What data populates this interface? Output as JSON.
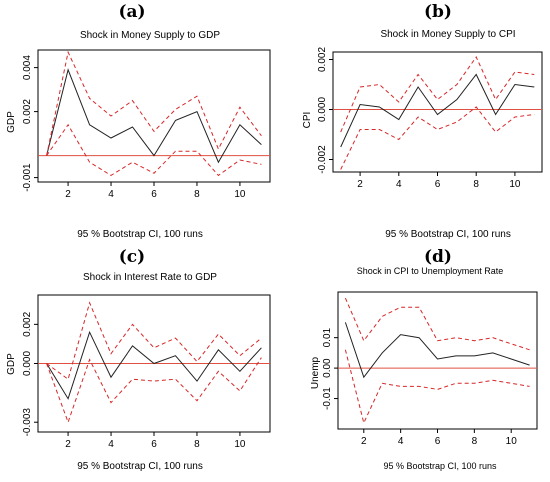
{
  "chart_data": [
    {
      "panel_label": "(a)",
      "type": "line",
      "title": "Shock in Money Supply to GDP",
      "xlabel": "",
      "ylabel": "GDP",
      "caption": "95 % Bootstrap CI,  100 runs",
      "x": [
        1,
        2,
        3,
        4,
        5,
        6,
        7,
        8,
        9,
        10,
        11
      ],
      "xticks": [
        2,
        4,
        6,
        8,
        10
      ],
      "xlim": [
        0.6,
        11.4
      ],
      "ylim": [
        -0.0012,
        0.0048
      ],
      "yticks": [
        -0.001,
        0.002,
        0.004
      ],
      "ytick_labels": [
        "-0.001",
        "0.002",
        "0.004"
      ],
      "zero_line": 0,
      "series": [
        {
          "role": "estimate",
          "color": "#222222",
          "dashed": false,
          "values": [
            0.0,
            0.0039,
            0.0014,
            0.0008,
            0.0013,
            0.0,
            0.0016,
            0.002,
            -0.0003,
            0.0014,
            0.0005
          ]
        },
        {
          "role": "upper",
          "color": "#d62728",
          "dashed": true,
          "values": [
            0.0,
            0.0047,
            0.0026,
            0.0018,
            0.0025,
            0.0011,
            0.0021,
            0.0027,
            0.0003,
            0.0022,
            0.0009
          ]
        },
        {
          "role": "lower",
          "color": "#d62728",
          "dashed": true,
          "values": [
            0.0,
            0.0014,
            -0.0003,
            -0.0009,
            -0.0003,
            -0.0008,
            0.0002,
            0.0002,
            -0.0009,
            -0.0002,
            -0.0004
          ]
        }
      ]
    },
    {
      "panel_label": "(b)",
      "type": "line",
      "title": "Shock in Money Supply to CPI",
      "xlabel": "",
      "ylabel": "CPI",
      "caption": "95 % Bootstrap CI,  100 runs",
      "x": [
        1,
        2,
        3,
        4,
        5,
        6,
        7,
        8,
        9,
        10,
        11
      ],
      "xticks": [
        2,
        4,
        6,
        8,
        10
      ],
      "xlim": [
        0.6,
        11.4
      ],
      "ylim": [
        -0.0025,
        0.0023
      ],
      "yticks": [
        -0.002,
        0.0,
        0.002
      ],
      "ytick_labels": [
        "-0.002",
        "0.000",
        "0.002"
      ],
      "zero_line": 0,
      "series": [
        {
          "role": "estimate",
          "color": "#222222",
          "dashed": false,
          "values": [
            -0.0015,
            0.0002,
            0.0001,
            -0.0004,
            0.0009,
            -0.0002,
            0.0004,
            0.0014,
            -0.0002,
            0.001,
            0.0009
          ]
        },
        {
          "role": "upper",
          "color": "#d62728",
          "dashed": true,
          "values": [
            -0.0009,
            0.0009,
            0.001,
            0.0003,
            0.0014,
            0.0004,
            0.001,
            0.0021,
            0.0004,
            0.0015,
            0.0014
          ]
        },
        {
          "role": "lower",
          "color": "#d62728",
          "dashed": true,
          "values": [
            -0.0024,
            -0.0008,
            -0.0008,
            -0.0012,
            -0.0003,
            -0.0008,
            -0.0005,
            0.0001,
            -0.0009,
            -0.0003,
            -0.0002
          ]
        }
      ]
    },
    {
      "panel_label": "(c)",
      "type": "line",
      "title": "Shock in Interest Rate to GDP",
      "xlabel": "",
      "ylabel": "GDP",
      "caption": "95 % Bootstrap CI,  100 runs",
      "x": [
        1,
        2,
        3,
        4,
        5,
        6,
        7,
        8,
        9,
        10,
        11
      ],
      "xticks": [
        2,
        4,
        6,
        8,
        10
      ],
      "xlim": [
        0.6,
        11.4
      ],
      "ylim": [
        -0.0035,
        0.0035
      ],
      "yticks": [
        -0.003,
        0.0,
        0.002
      ],
      "ytick_labels": [
        "-0.003",
        "0.000",
        "0.002"
      ],
      "zero_line": 0,
      "series": [
        {
          "role": "estimate",
          "color": "#222222",
          "dashed": false,
          "values": [
            0.0,
            -0.0018,
            0.0016,
            -0.0007,
            0.0009,
            0.0,
            0.0004,
            -0.0009,
            0.0007,
            -0.0004,
            0.0008
          ]
        },
        {
          "role": "upper",
          "color": "#d62728",
          "dashed": true,
          "values": [
            0.0,
            -0.0008,
            0.0031,
            0.0005,
            0.002,
            0.0008,
            0.0013,
            0.0001,
            0.0015,
            0.0004,
            0.0013
          ]
        },
        {
          "role": "lower",
          "color": "#d62728",
          "dashed": true,
          "values": [
            0.0,
            -0.003,
            0.0002,
            -0.002,
            -0.0008,
            -0.0009,
            -0.0008,
            -0.0019,
            -0.0004,
            -0.0014,
            0.0003
          ]
        }
      ]
    },
    {
      "panel_label": "(d)",
      "type": "line",
      "title": "Shock in CPI to Unemployment Rate",
      "xlabel": "",
      "ylabel": "Unemp",
      "caption": "95 % Bootstrap CI,  100 runs",
      "x": [
        1,
        2,
        3,
        4,
        5,
        6,
        7,
        8,
        9,
        10,
        11
      ],
      "xticks": [
        2,
        4,
        6,
        8,
        10
      ],
      "xlim": [
        0.6,
        11.4
      ],
      "ylim": [
        -0.02,
        0.025
      ],
      "yticks": [
        -0.01,
        0.0,
        0.01
      ],
      "ytick_labels": [
        "-0.01",
        "0.00",
        "0.01"
      ],
      "zero_line": 0,
      "series": [
        {
          "role": "estimate",
          "color": "#222222",
          "dashed": false,
          "values": [
            0.015,
            -0.003,
            0.005,
            0.011,
            0.01,
            0.003,
            0.004,
            0.004,
            0.005,
            0.003,
            0.001
          ]
        },
        {
          "role": "upper",
          "color": "#d62728",
          "dashed": true,
          "values": [
            0.023,
            0.009,
            0.017,
            0.02,
            0.02,
            0.009,
            0.01,
            0.009,
            0.01,
            0.008,
            0.006
          ]
        },
        {
          "role": "lower",
          "color": "#d62728",
          "dashed": true,
          "values": [
            0.006,
            -0.018,
            -0.005,
            -0.006,
            -0.006,
            -0.007,
            -0.005,
            -0.005,
            -0.004,
            -0.005,
            -0.006
          ]
        }
      ]
    }
  ]
}
